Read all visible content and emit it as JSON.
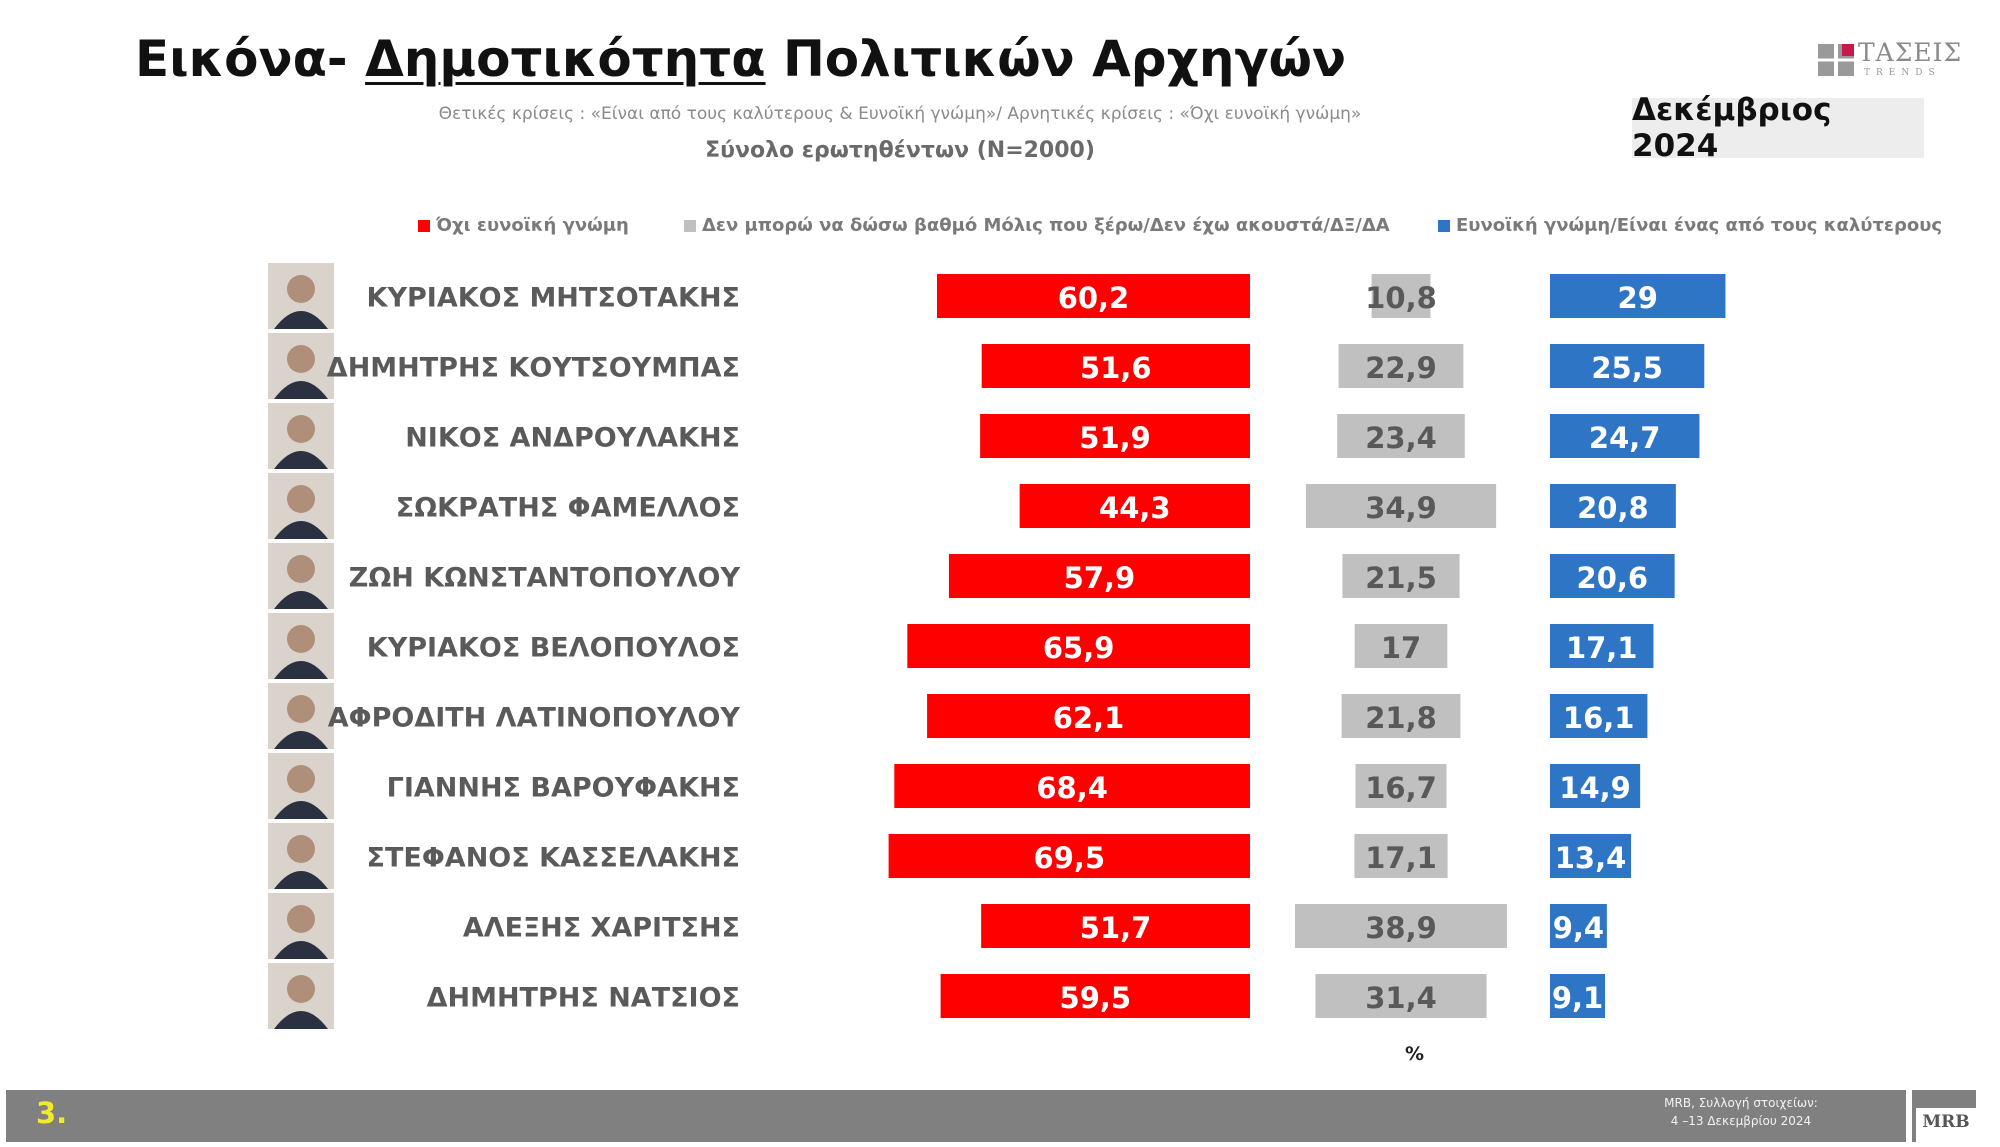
{
  "header": {
    "title_prefix": "Εικόνα- ",
    "title_underlined": "Δημοτικότητα",
    "title_suffix": " Πολιτικών Αρχηγών",
    "subtitle": "Θετικές κρίσεις : «Είναι από τους καλύτερους &  Ευνοϊκή γνώμη»/ Αρνητικές κρίσεις : «Όχι ευνοϊκή γνώμη»",
    "sample": "Σύνολο ερωτηθέντων (N=2000)",
    "date_badge": "Δεκέμβριος 2024",
    "brand_logo_text": "ΤΑΣΕΙΣ",
    "brand_logo_subtext": "TRENDS"
  },
  "footer": {
    "page_number": "3.",
    "source_line1": "MRB, Συλλογή στοιχείων:",
    "source_line2": "4 –13 Δεκεμβρίου 2024",
    "mrb_logo_text": "MRB"
  },
  "chart_data": {
    "type": "bar",
    "unit_label": "%",
    "categories": [
      "ΚΥΡΙΑΚΟΣ ΜΗΤΣΟΤΑΚΗΣ",
      "ΔΗΜΗΤΡΗΣ ΚΟΥΤΣΟΥΜΠΑΣ",
      "ΝΙΚΟΣ ΑΝΔΡΟΥΛΑΚΗΣ",
      "ΣΩΚΡΑΤΗΣ ΦΑΜΕΛΛΟΣ",
      "ΖΩΗ ΚΩΝΣΤΑΝΤΟΠΟΥΛΟΥ",
      "ΚΥΡΙΑΚΟΣ ΒΕΛΟΠΟΥΛΟΣ",
      "ΑΦΡΟΔΙΤΗ ΛΑΤΙΝΟΠΟΥΛΟΥ",
      "ΓΙΑΝΝΗΣ ΒΑΡΟΥΦΑΚΗΣ",
      "ΣΤΕΦΑΝΟΣ ΚΑΣΣΕΛΑΚΗΣ",
      "ΑΛΕΞΗΣ ΧΑΡΙΤΣΗΣ",
      "ΔΗΜΗΤΡΗΣ ΝΑΤΣΙΟΣ"
    ],
    "series": [
      {
        "name": "Όχι ευνοϊκή γνώμη",
        "color": "#ff0000",
        "labels": [
          "60,2",
          "51,6",
          "51,9",
          "44,3",
          "57,9",
          "65,9",
          "62,1",
          "68,4",
          "69,5",
          "51,7",
          "59,5"
        ],
        "values": [
          60.2,
          51.6,
          51.9,
          44.3,
          57.9,
          65.9,
          62.1,
          68.4,
          69.5,
          51.7,
          59.5
        ]
      },
      {
        "name": "Δεν μπορώ να δώσω βαθμό Μόλις που ξέρω/Δεν έχω ακουστά/ΔΞ/ΔΑ",
        "color": "#c0c0c0",
        "labels": [
          "10,8",
          "22,9",
          "23,4",
          "34,9",
          "21,5",
          "17",
          "21,8",
          "16,7",
          "17,1",
          "38,9",
          "31,4"
        ],
        "values": [
          10.8,
          22.9,
          23.4,
          34.9,
          21.5,
          17,
          21.8,
          16.7,
          17.1,
          38.9,
          31.4
        ]
      },
      {
        "name": "Ευνοϊκή γνώμη/Είναι ένας από τους καλύτερους",
        "color": "#2e75c6",
        "labels": [
          "29",
          "25,5",
          "24,7",
          "20,8",
          "20,6",
          "17,1",
          "16,1",
          "14,9",
          "13,4",
          "9,4",
          "9,1"
        ],
        "values": [
          29,
          25.5,
          24.7,
          20.8,
          20.6,
          17.1,
          16.1,
          14.9,
          13.4,
          9.4,
          9.1
        ]
      }
    ]
  }
}
